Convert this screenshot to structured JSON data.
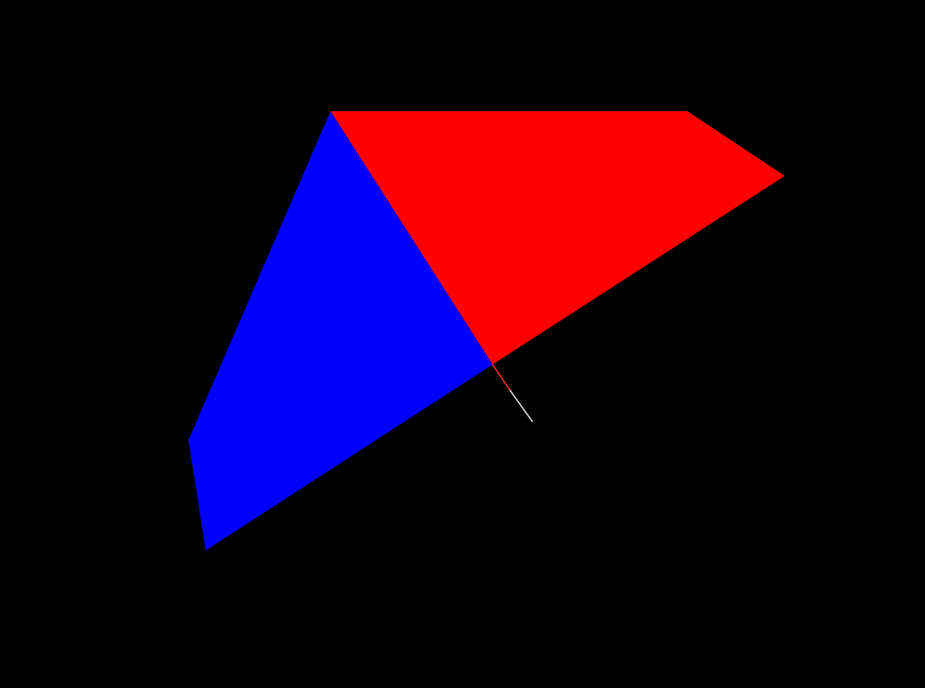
{
  "scene": {
    "background_color": "#000000",
    "shapes": [
      {
        "name": "red-polygon",
        "fill": "#ff0000"
      },
      {
        "name": "blue-polygon",
        "fill": "#0000ff"
      }
    ],
    "lines": [
      {
        "name": "red-segment",
        "stroke": "#ff3333"
      },
      {
        "name": "white-segment",
        "stroke": "#e8e8e8"
      }
    ]
  }
}
